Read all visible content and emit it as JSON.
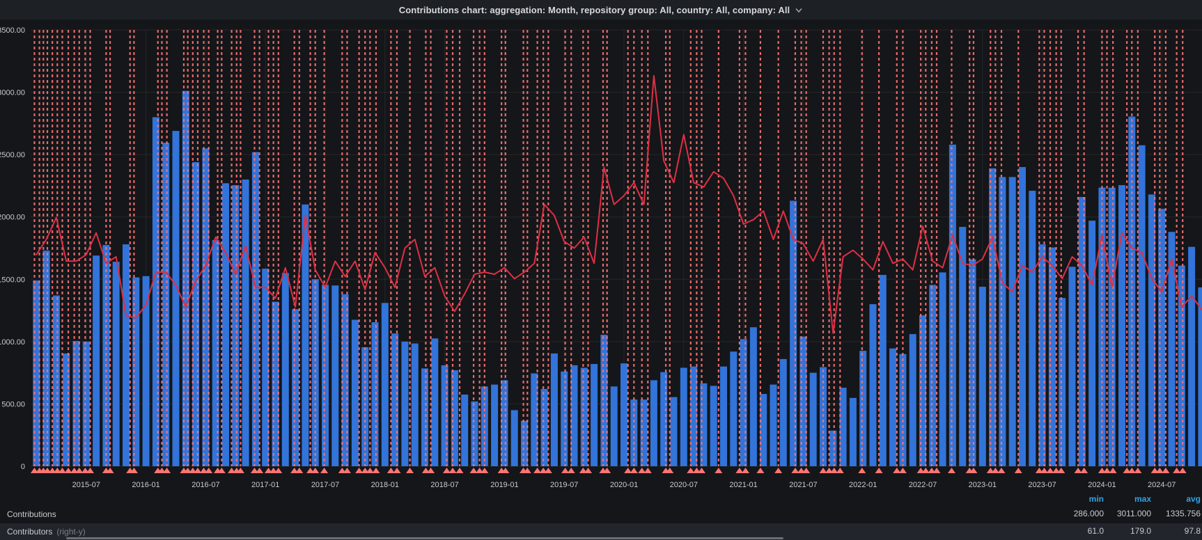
{
  "header": {
    "title": "Contributions chart: aggregation: Month, repository group: All, country: All, company: All"
  },
  "legend": {
    "columns": [
      "min",
      "max",
      "avg"
    ],
    "rows": [
      {
        "label": "Contributions",
        "suffix": "",
        "min": "286.000",
        "max": "3011.000",
        "avg": "1335.756"
      },
      {
        "label": "Contributors",
        "suffix": "(right-y)",
        "min": "61.0",
        "max": "179.0",
        "avg": "97.8"
      }
    ]
  },
  "colors": {
    "page_bg": "#141619",
    "header_bg": "#1d2126",
    "bar": "#3274D9",
    "line": "#E02F44",
    "annotation": "#FF7373",
    "triangle": "#FF7573",
    "grid": "rgba(255,255,255,0.07)",
    "axis_text": "#c8ccd1",
    "stat_header": "#33A2E5",
    "row_highlight": "#22252b"
  },
  "chart_data": {
    "type": "bar",
    "title": "Contributions chart: aggregation: Month, repository group: All, country: All, company: All",
    "xlabel": "",
    "ylabel": "",
    "grid": true,
    "legend_position": "bottom",
    "y_left": {
      "min": 0,
      "max": 3500,
      "tick_step": 500,
      "tick_labels": [
        "3500.00",
        "3000.00",
        "2500.00",
        "2000.00",
        "1500.00",
        "1000.00",
        "500.00",
        "0"
      ]
    },
    "y_right": {
      "min": 0,
      "max": 200,
      "labels_visible": false
    },
    "x_tick_labels": [
      "2015-07",
      "2016-01",
      "2016-07",
      "2017-01",
      "2017-07",
      "2018-01",
      "2018-07",
      "2019-01",
      "2019-07",
      "2020-01",
      "2020-07",
      "2021-01",
      "2021-07",
      "2022-01",
      "2022-07",
      "2023-01",
      "2023-07",
      "2024-01",
      "2024-07"
    ],
    "x_tick_month_offsets": [
      6,
      12,
      18,
      24,
      30,
      36,
      42,
      48,
      54,
      60,
      66,
      72,
      78,
      84,
      90,
      96,
      102,
      108,
      114
    ],
    "months": [
      "2015-02",
      "2015-03",
      "2015-04",
      "2015-05",
      "2015-06",
      "2015-07",
      "2015-08",
      "2015-09",
      "2015-10",
      "2015-11",
      "2015-12",
      "2016-01",
      "2016-02",
      "2016-03",
      "2016-04",
      "2016-05",
      "2016-06",
      "2016-07",
      "2016-08",
      "2016-09",
      "2016-10",
      "2016-11",
      "2016-12",
      "2017-01",
      "2017-02",
      "2017-03",
      "2017-04",
      "2017-05",
      "2017-06",
      "2017-07",
      "2017-08",
      "2017-09",
      "2017-10",
      "2017-11",
      "2017-12",
      "2018-01",
      "2018-02",
      "2018-03",
      "2018-04",
      "2018-05",
      "2018-06",
      "2018-07",
      "2018-08",
      "2018-09",
      "2018-10",
      "2018-11",
      "2018-12",
      "2019-01",
      "2019-02",
      "2019-03",
      "2019-04",
      "2019-05",
      "2019-06",
      "2019-07",
      "2019-08",
      "2019-09",
      "2019-10",
      "2019-11",
      "2019-12",
      "2020-01",
      "2020-02",
      "2020-03",
      "2020-04",
      "2020-05",
      "2020-06",
      "2020-07",
      "2020-08",
      "2020-09",
      "2020-10",
      "2020-11",
      "2020-12",
      "2021-01",
      "2021-02",
      "2021-03",
      "2021-04",
      "2021-05",
      "2021-06",
      "2021-07",
      "2021-08",
      "2021-09",
      "2021-10",
      "2021-11",
      "2021-12",
      "2022-01",
      "2022-02",
      "2022-03",
      "2022-04",
      "2022-05",
      "2022-06",
      "2022-07",
      "2022-08",
      "2022-09",
      "2022-10",
      "2022-11",
      "2022-12",
      "2023-01",
      "2023-02",
      "2023-03",
      "2023-04",
      "2023-05",
      "2023-06",
      "2023-07",
      "2023-08",
      "2023-09",
      "2023-10",
      "2023-11",
      "2023-12",
      "2024-01",
      "2024-02",
      "2024-03",
      "2024-04",
      "2024-05",
      "2024-06",
      "2024-07",
      "2024-08",
      "2024-09",
      "2024-10",
      "2024-11"
    ],
    "series": [
      {
        "name": "Contributions",
        "type": "bar",
        "axis": "left",
        "color": "#3274D9",
        "stats": {
          "min": 286.0,
          "max": 3011.0,
          "avg": 1335.756
        },
        "values": [
          1490,
          1730,
          1370,
          905,
          1005,
          1000,
          1690,
          1775,
          1640,
          1780,
          1515,
          1525,
          2800,
          2595,
          2690,
          3011,
          2440,
          2550,
          1815,
          2270,
          2255,
          2300,
          2520,
          1585,
          1320,
          1550,
          1260,
          2100,
          1500,
          1455,
          1450,
          1380,
          1175,
          955,
          1155,
          1310,
          1065,
          1000,
          985,
          785,
          1025,
          810,
          770,
          575,
          520,
          640,
          655,
          690,
          450,
          365,
          745,
          620,
          905,
          760,
          810,
          790,
          820,
          1055,
          640,
          825,
          535,
          535,
          690,
          755,
          555,
          790,
          800,
          665,
          645,
          800,
          920,
          1020,
          1115,
          580,
          655,
          860,
          2130,
          1040,
          750,
          795,
          286,
          630,
          548,
          926,
          1300,
          1535,
          945,
          900,
          1060,
          1210,
          1455,
          1555,
          2580,
          1920,
          1660,
          1440,
          2390,
          2320,
          2320,
          2400,
          2210,
          1780,
          1755,
          1350,
          1600,
          2160,
          1970,
          2235,
          2235,
          2255,
          2805,
          2575,
          2180,
          2065,
          1880,
          1610,
          1760,
          1435
        ]
      },
      {
        "name": "Contributors",
        "type": "line",
        "axis": "right",
        "color": "#E02F44",
        "stats": {
          "min": 61.0,
          "max": 179.0,
          "avg": 97.8
        },
        "values": [
          97,
          104,
          114,
          94,
          94,
          97,
          107,
          93,
          96,
          69,
          68,
          74,
          89,
          89,
          83,
          73,
          85,
          92,
          105,
          98,
          88,
          101,
          82,
          82,
          77,
          91,
          73,
          115,
          90,
          82,
          94,
          87,
          94,
          81,
          98,
          91,
          82,
          100,
          104,
          87,
          91,
          78,
          71,
          79,
          88,
          89,
          88,
          91,
          86,
          89,
          93,
          120,
          115,
          103,
          100,
          105,
          93,
          137,
          120,
          124,
          130,
          120,
          179,
          140,
          130,
          152,
          130,
          128,
          135,
          132,
          124,
          111,
          113,
          117,
          104,
          117,
          104,
          102,
          94,
          104,
          61,
          96,
          99,
          95,
          90,
          103,
          93,
          95,
          90,
          110,
          94,
          91,
          106,
          93,
          92,
          95,
          105,
          84,
          80,
          92,
          89,
          96,
          92,
          86,
          96,
          92,
          83,
          106,
          82,
          107,
          100,
          98,
          86,
          80,
          95,
          73,
          78,
          72
        ]
      }
    ],
    "annotations": {
      "style": "dashed-vertical-line-with-triangle",
      "color": "#FF7373",
      "triangle_color": "#FF7573",
      "month_offsets": [
        0.8,
        1.3,
        1.7,
        2.1,
        2.6,
        3.1,
        3.6,
        4.2,
        4.8,
        5.3,
        5.9,
        6.4,
        8.0,
        8.4,
        10.4,
        10.8,
        13.2,
        13.6,
        14.1,
        15.8,
        16.2,
        16.7,
        17.2,
        17.8,
        18.3,
        19.2,
        19.6,
        20.6,
        21.1,
        21.5,
        22.9,
        23.4,
        24.3,
        24.8,
        25.3,
        26.9,
        27.4,
        28.5,
        29.0,
        29.9,
        31.7,
        32.2,
        33.4,
        34.0,
        34.5,
        35.1,
        36.6,
        37.2,
        38.5,
        40.1,
        40.6,
        42.2,
        42.8,
        43.5,
        44.9,
        45.5,
        46.0,
        47.7,
        48.1,
        49.9,
        50.3,
        51.3,
        51.9,
        52.4,
        54.1,
        54.7,
        55.9,
        56.4,
        57.9,
        58.3,
        60.4,
        61.0,
        61.8,
        62.4,
        64.2,
        64.6,
        66.7,
        67.3,
        67.8,
        69.5,
        71.6,
        72.2,
        73.7,
        75.5,
        77.2,
        77.8,
        78.3,
        80.0,
        80.6,
        81.1,
        81.7,
        83.9,
        85.6,
        87.4,
        88.0,
        89.8,
        90.3,
        90.9,
        91.4,
        92.9,
        94.7,
        95.1,
        96.8,
        97.3,
        97.9,
        99.6,
        101.7,
        102.2,
        102.8,
        103.4,
        103.9,
        105.6,
        106.2,
        108.0,
        108.5,
        109.1,
        110.5,
        111.0,
        111.6,
        113.3,
        113.8,
        114.4,
        115.5,
        116.1
      ]
    }
  }
}
